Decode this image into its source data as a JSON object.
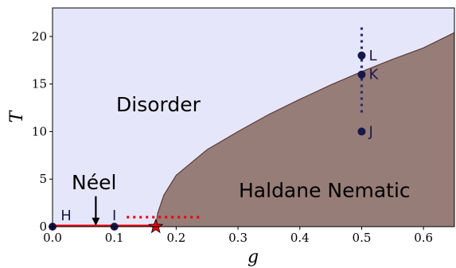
{
  "chart_data": {
    "type": "line",
    "xlabel": "g",
    "ylabel": "T",
    "xlim": [
      0,
      0.65
    ],
    "ylim": [
      0,
      23
    ],
    "x_ticks": [
      0.0,
      0.1,
      0.2,
      0.3,
      0.4,
      0.5,
      0.6
    ],
    "x_tick_labels": [
      "0.0",
      "0.1",
      "0.2",
      "0.3",
      "0.4",
      "0.5",
      "0.6"
    ],
    "y_ticks": [
      0,
      5,
      10,
      15,
      20
    ],
    "y_tick_labels": [
      "0",
      "5",
      "10",
      "15",
      "20"
    ],
    "regions": {
      "disorder": {
        "label": "Disorder",
        "color": "#e6e6fa"
      },
      "haldane": {
        "label": "Haldane Nematic",
        "color": "#977d77"
      }
    },
    "phase_boundary": {
      "x": [
        0.167,
        0.17,
        0.18,
        0.2,
        0.25,
        0.3,
        0.35,
        0.4,
        0.45,
        0.5,
        0.55,
        0.6,
        0.65
      ],
      "y": [
        0.0,
        1.4,
        3.3,
        5.4,
        8.1,
        10.0,
        11.8,
        13.4,
        14.9,
        16.3,
        17.6,
        18.8,
        20.4
      ],
      "color": "#5a3a3a"
    },
    "neel_line": {
      "x": [
        0.0,
        0.167
      ],
      "y": [
        0,
        0
      ],
      "color": "#e8000b"
    },
    "neel_dotted": {
      "x": [
        0.12,
        0.24
      ],
      "y": [
        1.0,
        1.0
      ],
      "color": "#e8000b"
    },
    "vertical_dotted": {
      "x": [
        0.5,
        0.5
      ],
      "y": [
        12.0,
        21.0
      ],
      "color": "#2b2b6b"
    },
    "critical_point": {
      "x": 0.167,
      "y": 0,
      "marker": "star",
      "color": "#e8000b"
    },
    "points": [
      {
        "label": "H",
        "x": 0.0,
        "y": 0.0
      },
      {
        "label": "I",
        "x": 0.1,
        "y": 0.0
      },
      {
        "label": "J",
        "x": 0.5,
        "y": 10.0
      },
      {
        "label": "K",
        "x": 0.5,
        "y": 16.0
      },
      {
        "label": "L",
        "x": 0.5,
        "y": 18.0
      }
    ],
    "point_color": "#17174a",
    "annotations": [
      {
        "text": "Néel",
        "arrow_x": 0.07,
        "arrow_from_y": 3.2,
        "arrow_to_y": 0.1
      }
    ]
  }
}
